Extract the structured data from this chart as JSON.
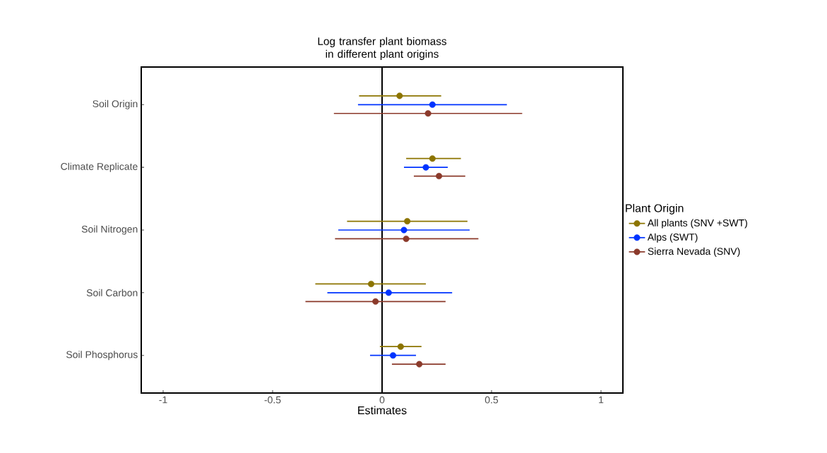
{
  "chart_data": {
    "type": "scatter",
    "orientation": "horizontal",
    "title": "Log transfer plant biomass in different plant origins",
    "xlabel": "Estimates",
    "legend_title": "Plant Origin",
    "categories": [
      "Soil Origin",
      "Climate Replicate",
      "Soil Nitrogen",
      "Soil Carbon",
      "Soil Phosphorus"
    ],
    "series": [
      {
        "name": "All plants (SNV +SWT)",
        "color": "#8c7400",
        "values": [
          0.08,
          0.23,
          0.115,
          -0.05,
          0.085
        ],
        "errors": [
          [
            -0.105,
            0.27
          ],
          [
            0.11,
            0.36
          ],
          [
            -0.16,
            0.39
          ],
          [
            -0.305,
            0.2
          ],
          [
            -0.01,
            0.18
          ]
        ]
      },
      {
        "name": "Alps (SWT)",
        "color": "#0033ff",
        "values": [
          0.23,
          0.2,
          0.1,
          0.03,
          0.05
        ],
        "errors": [
          [
            -0.11,
            0.57
          ],
          [
            0.1,
            0.3
          ],
          [
            -0.2,
            0.4
          ],
          [
            -0.25,
            0.32
          ],
          [
            -0.055,
            0.155
          ]
        ]
      },
      {
        "name": "Sierra Nevada (SNV)",
        "color": "#8b3a2b",
        "values": [
          0.21,
          0.26,
          0.11,
          -0.03,
          0.17
        ],
        "errors": [
          [
            -0.22,
            0.64
          ],
          [
            0.145,
            0.38
          ],
          [
            -0.215,
            0.44
          ],
          [
            -0.35,
            0.29
          ],
          [
            0.045,
            0.29
          ]
        ]
      }
    ],
    "xlim": [
      -1.1,
      1.1
    ],
    "xticks": [
      -1,
      -0.5,
      0,
      0.5,
      1
    ],
    "ref_lines": [
      {
        "axis": "x",
        "value": 0,
        "color": "#000000"
      }
    ],
    "marker": "circle",
    "legend": "right"
  }
}
